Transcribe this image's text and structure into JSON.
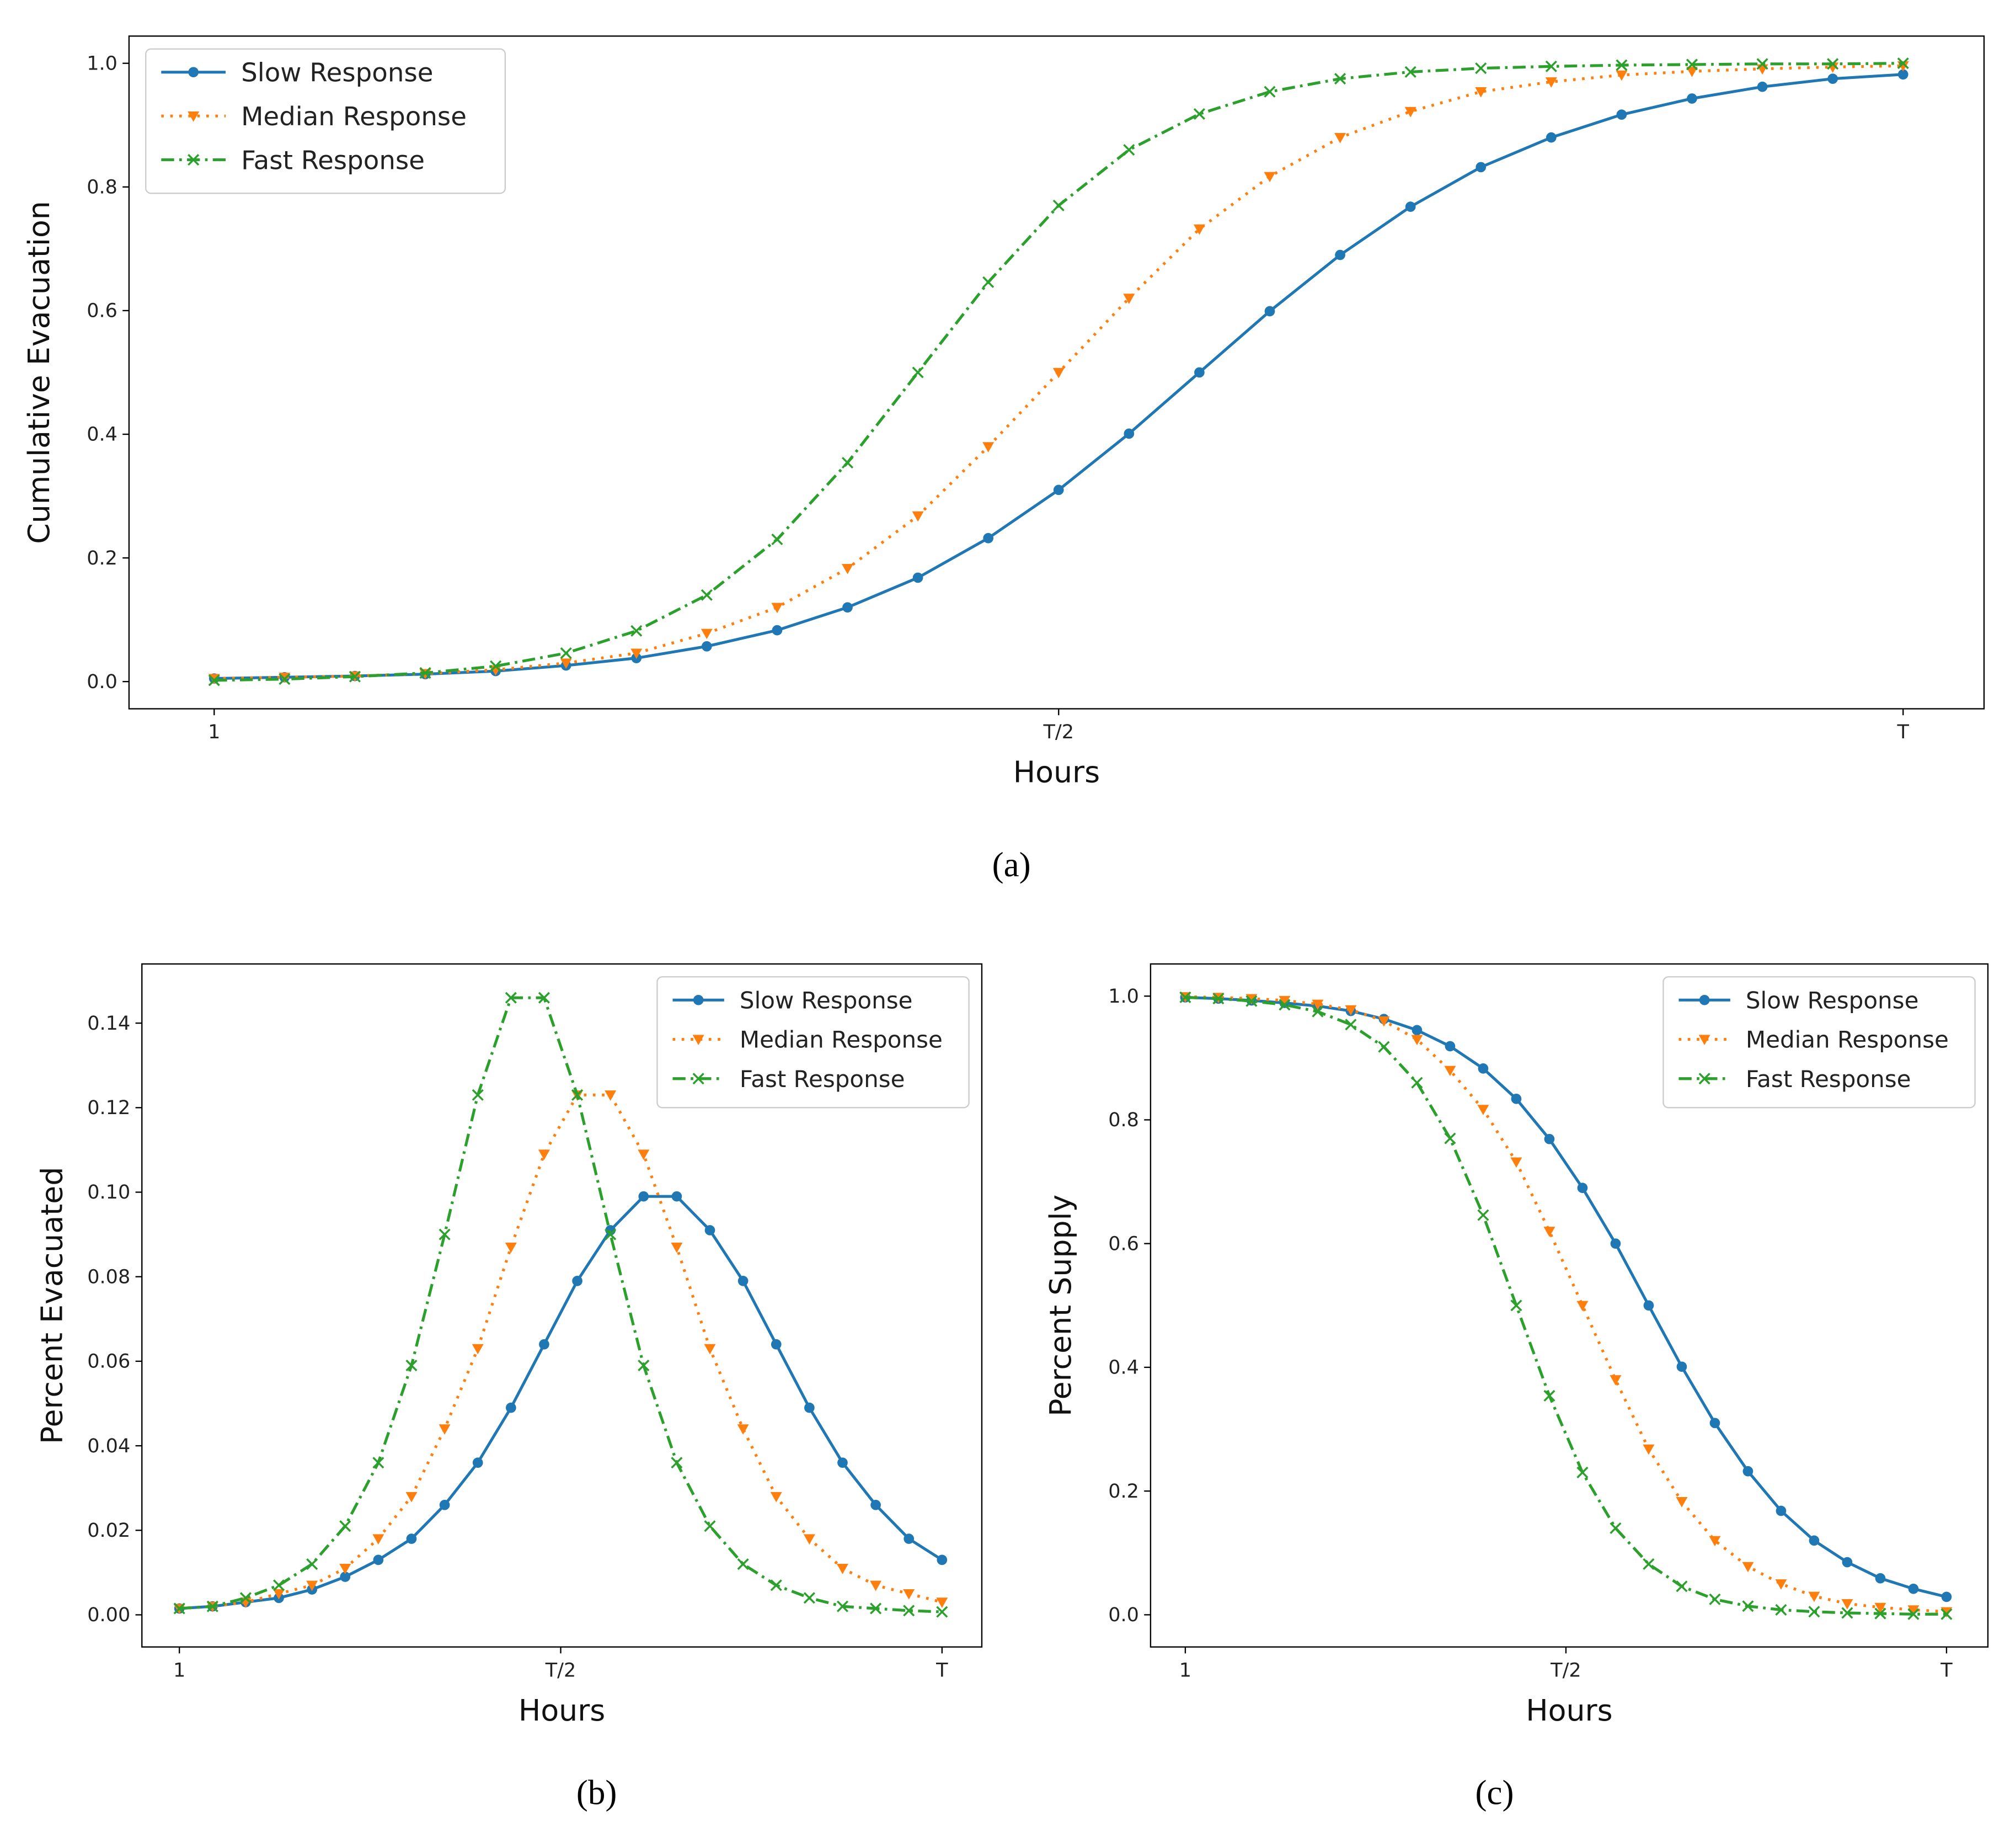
{
  "chart_data": [
    {
      "type": "line",
      "caption": "(a)",
      "xlabel": "Hours",
      "ylabel": "Cumulative Evacuation",
      "legend": "upper left",
      "x": [
        1,
        2,
        3,
        4,
        5,
        6,
        7,
        8,
        9,
        10,
        11,
        12,
        13,
        14,
        15,
        16,
        17,
        18,
        19,
        20,
        21,
        22,
        23,
        24,
        25
      ],
      "xlim": [
        -0.21,
        26.15
      ],
      "ylim": [
        -0.044,
        1.044
      ],
      "xticks": [
        1,
        {
          "value": 13,
          "label": "T/2"
        },
        {
          "value": 25,
          "label": "T"
        }
      ],
      "yticks": [
        {
          "value": 0,
          "label": "0.0"
        },
        0.2,
        0.4,
        0.6,
        0.8,
        {
          "value": 1,
          "label": "1.0"
        }
      ],
      "series": [
        {
          "name": "Slow Response",
          "color": "#1f77b4",
          "values": [
            0.005,
            0.007,
            0.009,
            0.012,
            0.017,
            0.026,
            0.038,
            0.057,
            0.083,
            0.12,
            0.168,
            0.232,
            0.31,
            0.401,
            0.5,
            0.599,
            0.69,
            0.768,
            0.832,
            0.88,
            0.917,
            0.943,
            0.962,
            0.975,
            0.982
          ]
        },
        {
          "name": "Median Response",
          "color": "#ff7f0e",
          "values": [
            0.005,
            0.007,
            0.009,
            0.013,
            0.019,
            0.03,
            0.046,
            0.078,
            0.12,
            0.183,
            0.268,
            0.38,
            0.5,
            0.62,
            0.732,
            0.817,
            0.88,
            0.922,
            0.954,
            0.97,
            0.981,
            0.987,
            0.991,
            0.994,
            0.996
          ]
        },
        {
          "name": "Fast Response",
          "color": "#2ca02c",
          "values": [
            0.002,
            0.004,
            0.008,
            0.014,
            0.025,
            0.046,
            0.082,
            0.14,
            0.23,
            0.354,
            0.5,
            0.646,
            0.77,
            0.86,
            0.918,
            0.954,
            0.975,
            0.986,
            0.992,
            0.995,
            0.997,
            0.998,
            0.999,
            0.999,
            1.0
          ]
        }
      ]
    },
    {
      "type": "line",
      "caption": "(b)",
      "xlabel": "Hours",
      "ylabel": "Percent Evacuated",
      "legend": "upper right",
      "x": [
        1,
        2,
        3,
        4,
        5,
        6,
        7,
        8,
        9,
        10,
        11,
        12,
        13,
        14,
        15,
        16,
        17,
        18,
        19,
        20,
        21,
        22,
        23,
        24
      ],
      "xlim": [
        -0.13,
        25.2
      ],
      "ylim": [
        -0.0076,
        0.154
      ],
      "xticks": [
        1,
        {
          "value": 12.5,
          "label": "T/2"
        },
        {
          "value": 24,
          "label": "T"
        }
      ],
      "yticks": [
        {
          "value": 0,
          "label": "0.00"
        },
        0.02,
        0.04,
        0.06,
        0.08,
        {
          "value": 0.1,
          "label": "0.10"
        },
        0.12,
        0.14
      ],
      "series": [
        {
          "name": "Slow Response",
          "color": "#1f77b4",
          "values": [
            0.0015,
            0.002,
            0.003,
            0.004,
            0.006,
            0.009,
            0.013,
            0.018,
            0.026,
            0.036,
            0.049,
            0.064,
            0.079,
            0.091,
            0.099,
            0.099,
            0.091,
            0.079,
            0.064,
            0.049,
            0.036,
            0.026,
            0.018,
            0.013
          ]
        },
        {
          "name": "Median Response",
          "color": "#ff7f0e",
          "values": [
            0.0015,
            0.002,
            0.003,
            0.005,
            0.007,
            0.011,
            0.018,
            0.028,
            0.044,
            0.063,
            0.087,
            0.109,
            0.123,
            0.123,
            0.109,
            0.087,
            0.063,
            0.044,
            0.028,
            0.018,
            0.011,
            0.007,
            0.005,
            0.003
          ]
        },
        {
          "name": "Fast Response",
          "color": "#2ca02c",
          "values": [
            0.0015,
            0.002,
            0.004,
            0.007,
            0.012,
            0.021,
            0.036,
            0.059,
            0.09,
            0.123,
            0.146,
            0.146,
            0.123,
            0.09,
            0.059,
            0.036,
            0.021,
            0.012,
            0.007,
            0.004,
            0.002,
            0.0015,
            0.001,
            0.0007
          ]
        }
      ]
    },
    {
      "type": "line",
      "caption": "(c)",
      "xlabel": "Hours",
      "ylabel": "Percent Supply",
      "legend": "upper right",
      "x": [
        1,
        2,
        3,
        4,
        5,
        6,
        7,
        8,
        9,
        10,
        11,
        12,
        13,
        14,
        15,
        16,
        17,
        18,
        19,
        20,
        21,
        22,
        23,
        24
      ],
      "xlim": [
        -0.05,
        25.25
      ],
      "ylim": [
        -0.052,
        1.052
      ],
      "xticks": [
        1,
        {
          "value": 12.5,
          "label": "T/2"
        },
        {
          "value": 24,
          "label": "T"
        }
      ],
      "yticks": [
        {
          "value": 0,
          "label": "0.0"
        },
        0.2,
        0.4,
        0.6,
        0.8,
        {
          "value": 1,
          "label": "1.0"
        }
      ],
      "series": [
        {
          "name": "Slow Response",
          "color": "#1f77b4",
          "values": [
            0.998,
            0.996,
            0.993,
            0.989,
            0.984,
            0.976,
            0.963,
            0.945,
            0.919,
            0.883,
            0.834,
            0.769,
            0.69,
            0.6,
            0.5,
            0.401,
            0.31,
            0.232,
            0.168,
            0.12,
            0.085,
            0.059,
            0.042,
            0.029
          ]
        },
        {
          "name": "Median Response",
          "color": "#ff7f0e",
          "values": [
            0.999,
            0.998,
            0.996,
            0.993,
            0.987,
            0.978,
            0.96,
            0.93,
            0.88,
            0.817,
            0.732,
            0.62,
            0.5,
            0.38,
            0.268,
            0.183,
            0.12,
            0.078,
            0.05,
            0.03,
            0.018,
            0.012,
            0.008,
            0.005
          ]
        },
        {
          "name": "Fast Response",
          "color": "#2ca02c",
          "values": [
            0.998,
            0.996,
            0.992,
            0.986,
            0.975,
            0.954,
            0.918,
            0.86,
            0.77,
            0.646,
            0.5,
            0.354,
            0.23,
            0.14,
            0.082,
            0.046,
            0.025,
            0.014,
            0.008,
            0.005,
            0.003,
            0.002,
            0.001,
            0.001
          ]
        }
      ]
    }
  ]
}
